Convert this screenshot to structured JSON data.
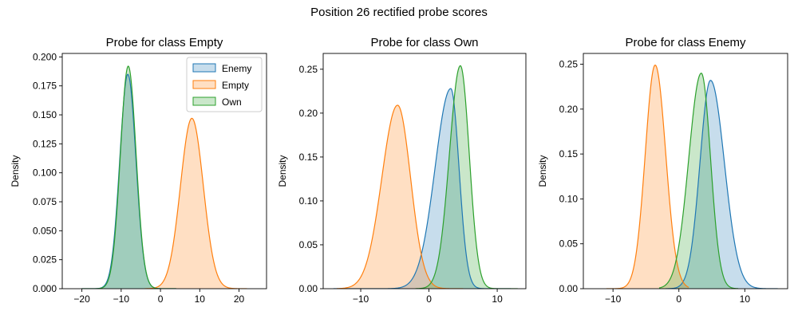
{
  "figure": {
    "title": "Position 26 rectified probe scores"
  },
  "legend": {
    "placement": "top-right",
    "panel": 0,
    "entries": [
      {
        "label": "Enemy",
        "color": "#1f77b4"
      },
      {
        "label": "Empty",
        "color": "#ff7f0e"
      },
      {
        "label": "Own",
        "color": "#2ca02c"
      }
    ]
  },
  "chart_data": [
    {
      "type": "area",
      "title": "Probe for class Empty",
      "xlabel": "",
      "ylabel": "Density",
      "xlim": [
        -25,
        27
      ],
      "ylim": [
        0,
        0.203
      ],
      "xticks": [
        -20,
        -10,
        0,
        10,
        20
      ],
      "xtick_labels": [
        "−20",
        "−10",
        "0",
        "10",
        "20"
      ],
      "yticks": [
        0,
        0.025,
        0.05,
        0.075,
        0.1,
        0.125,
        0.15,
        0.175,
        0.2
      ],
      "ytick_labels": [
        "0.000",
        "0.025",
        "0.050",
        "0.075",
        "0.100",
        "0.125",
        "0.150",
        "0.175",
        "0.200"
      ],
      "series": [
        {
          "name": "Enemy",
          "color": "#1f77b4",
          "kde": {
            "mu": -8.3,
            "sl": 2.05,
            "sr": 2.05,
            "peak": 0.185,
            "lo": -20,
            "hi": 4
          }
        },
        {
          "name": "Empty",
          "color": "#ff7f0e",
          "kde": {
            "mu": 8.0,
            "sl": 2.9,
            "sr": 2.9,
            "peak": 0.147,
            "lo": -4,
            "hi": 22
          }
        },
        {
          "name": "Own",
          "color": "#2ca02c",
          "kde": {
            "mu": -8.2,
            "sl": 2.0,
            "sr": 2.0,
            "peak": 0.192,
            "lo": -20,
            "hi": 4
          }
        }
      ]
    },
    {
      "type": "area",
      "title": "Probe for class Own",
      "xlabel": "",
      "ylabel": "Density",
      "xlim": [
        -15.5,
        14.2
      ],
      "ylim": [
        0,
        0.268
      ],
      "xticks": [
        -10,
        0,
        10
      ],
      "xtick_labels": [
        "−10",
        "0",
        "10"
      ],
      "yticks": [
        0,
        0.05,
        0.1,
        0.15,
        0.2,
        0.25
      ],
      "ytick_labels": [
        "0.00",
        "0.05",
        "0.10",
        "0.15",
        "0.20",
        "0.25"
      ],
      "series": [
        {
          "name": "Enemy",
          "color": "#1f77b4",
          "kde": {
            "mu": 3.2,
            "sl": 2.3,
            "sr": 1.2,
            "peak": 0.228,
            "lo": -14,
            "hi": 12
          }
        },
        {
          "name": "Empty",
          "color": "#ff7f0e",
          "kde": {
            "mu": -4.6,
            "sl": 2.3,
            "sr": 1.9,
            "peak": 0.209,
            "lo": -13.5,
            "hi": 5
          }
        },
        {
          "name": "Own",
          "color": "#2ca02c",
          "kde": {
            "mu": 4.6,
            "sl": 1.6,
            "sr": 1.3,
            "peak": 0.254,
            "lo": -2,
            "hi": 13
          }
        }
      ]
    },
    {
      "type": "area",
      "title": "Probe for class Enemy",
      "xlabel": "",
      "ylabel": "Density",
      "xlim": [
        -14.5,
        16.5
      ],
      "ylim": [
        0,
        0.262
      ],
      "xticks": [
        -10,
        0,
        10
      ],
      "xtick_labels": [
        "−10",
        "0",
        "10"
      ],
      "yticks": [
        0,
        0.05,
        0.1,
        0.15,
        0.2,
        0.25
      ],
      "ytick_labels": [
        "0.00",
        "0.05",
        "0.10",
        "0.15",
        "0.20",
        "0.25"
      ],
      "series": [
        {
          "name": "Enemy",
          "color": "#1f77b4",
          "kde": {
            "mu": 4.8,
            "sl": 1.6,
            "sr": 2.1,
            "peak": 0.232,
            "lo": -2,
            "hi": 15
          }
        },
        {
          "name": "Empty",
          "color": "#ff7f0e",
          "kde": {
            "mu": -3.6,
            "sl": 1.5,
            "sr": 1.6,
            "peak": 0.249,
            "lo": -11,
            "hi": 1.5
          }
        },
        {
          "name": "Own",
          "color": "#2ca02c",
          "kde": {
            "mu": 3.4,
            "sl": 1.9,
            "sr": 1.4,
            "peak": 0.24,
            "lo": -3,
            "hi": 9
          }
        }
      ]
    }
  ]
}
